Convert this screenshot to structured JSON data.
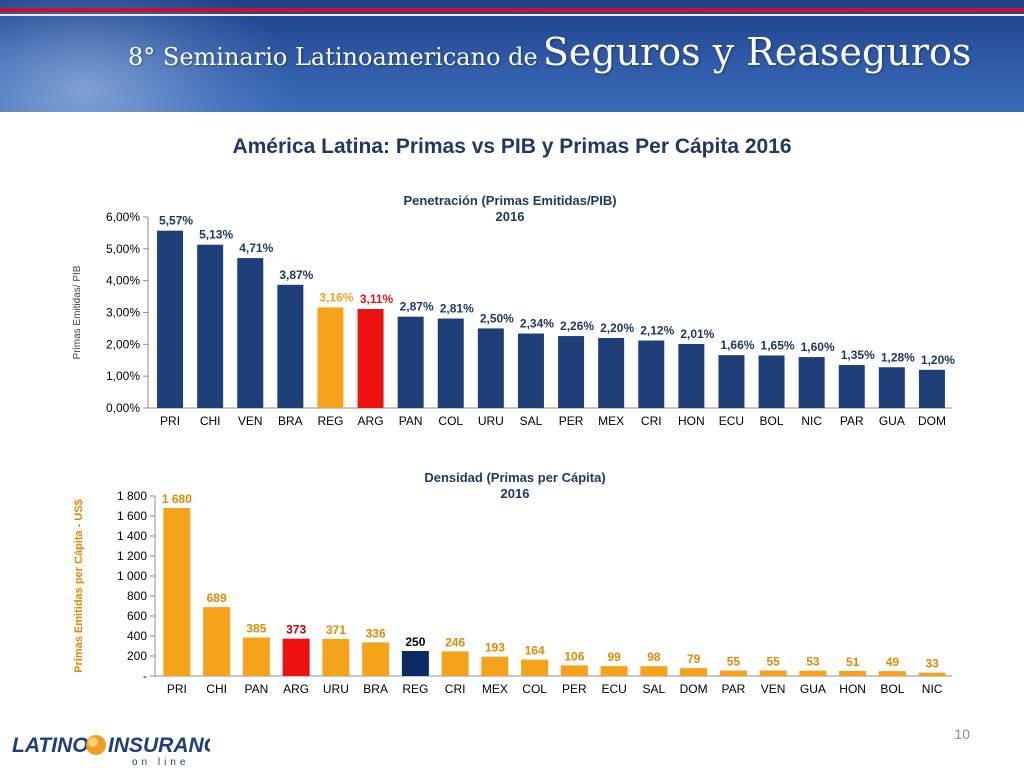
{
  "header": {
    "title_prefix": "8° Seminario Latinoamericano de",
    "title_main": "Seguros y Reaseguros"
  },
  "slide_title": "América Latina: Primas vs PIB y Primas Per Cápita 2016",
  "page_number": "10",
  "footer": {
    "logo_left": "LATINO",
    "logo_right": "INSURANCE",
    "logo_sub": "on line"
  },
  "colors": {
    "navy": "#1f3f79",
    "orange": "#f5a31a",
    "red": "#ee1111",
    "dark_navy": "#0b2a66",
    "orange_text": "#e08a00"
  },
  "chart_data": [
    {
      "type": "bar",
      "title": "Penetración (Primas Emitidas/PIB)",
      "subtitle": "2016",
      "ylabel": "Primas Emitidas/ PIB",
      "xlabel": "",
      "ylim": [
        0,
        6
      ],
      "yticks": [
        0,
        1,
        2,
        3,
        4,
        5,
        6
      ],
      "ytick_labels": [
        "0,00%",
        "1,00%",
        "2,00%",
        "3,00%",
        "4,00%",
        "5,00%",
        "6,00%"
      ],
      "categories": [
        "PRI",
        "CHI",
        "VEN",
        "BRA",
        "REG",
        "ARG",
        "PAN",
        "COL",
        "URU",
        "SAL",
        "PER",
        "MEX",
        "CRI",
        "HON",
        "ECU",
        "BOL",
        "NIC",
        "PAR",
        "GUA",
        "DOM"
      ],
      "values": [
        5.57,
        5.13,
        4.71,
        3.87,
        3.16,
        3.11,
        2.87,
        2.81,
        2.5,
        2.34,
        2.26,
        2.2,
        2.12,
        2.01,
        1.66,
        1.65,
        1.6,
        1.35,
        1.28,
        1.2
      ],
      "labels": [
        "5,57%",
        "5,13%",
        "4,71%",
        "3,87%",
        "3,16%",
        "3,11%",
        "2,87%",
        "2,81%",
        "2,50%",
        "2,34%",
        "2,26%",
        "2,20%",
        "2,12%",
        "2,01%",
        "1,66%",
        "1,65%",
        "1,60%",
        "1,35%",
        "1,28%",
        "1,20%"
      ],
      "highlight": {
        "REG": "orange",
        "ARG": "red"
      },
      "default_color": "navy"
    },
    {
      "type": "bar",
      "title": "Densidad (Primas per Cápita)",
      "subtitle": "2016",
      "ylabel": "Primas Emitidas per Cápita - US$",
      "xlabel": "",
      "ylim": [
        0,
        1800
      ],
      "yticks": [
        0,
        200,
        400,
        600,
        800,
        1000,
        1200,
        1400,
        1600,
        1800
      ],
      "ytick_labels": [
        "-",
        "200",
        "400",
        "600",
        "800",
        "1 000",
        "1 200",
        "1 400",
        "1 600",
        "1 800"
      ],
      "categories": [
        "PRI",
        "CHI",
        "PAN",
        "ARG",
        "URU",
        "BRA",
        "REG",
        "CRI",
        "MEX",
        "COL",
        "PER",
        "ECU",
        "SAL",
        "DOM",
        "PAR",
        "VEN",
        "GUA",
        "HON",
        "BOL",
        "NIC"
      ],
      "values": [
        1680,
        689,
        385,
        373,
        371,
        336,
        250,
        246,
        193,
        164,
        106,
        99,
        98,
        79,
        55,
        55,
        53,
        51,
        49,
        33
      ],
      "labels": [
        "1 680",
        "689",
        "385",
        "373",
        "371",
        "336",
        "250",
        "246",
        "193",
        "164",
        "106",
        "99",
        "98",
        "79",
        "55",
        "55",
        "53",
        "51",
        "49",
        "33"
      ],
      "highlight": {
        "ARG": "red",
        "REG": "dark_navy"
      },
      "default_color": "orange"
    }
  ]
}
